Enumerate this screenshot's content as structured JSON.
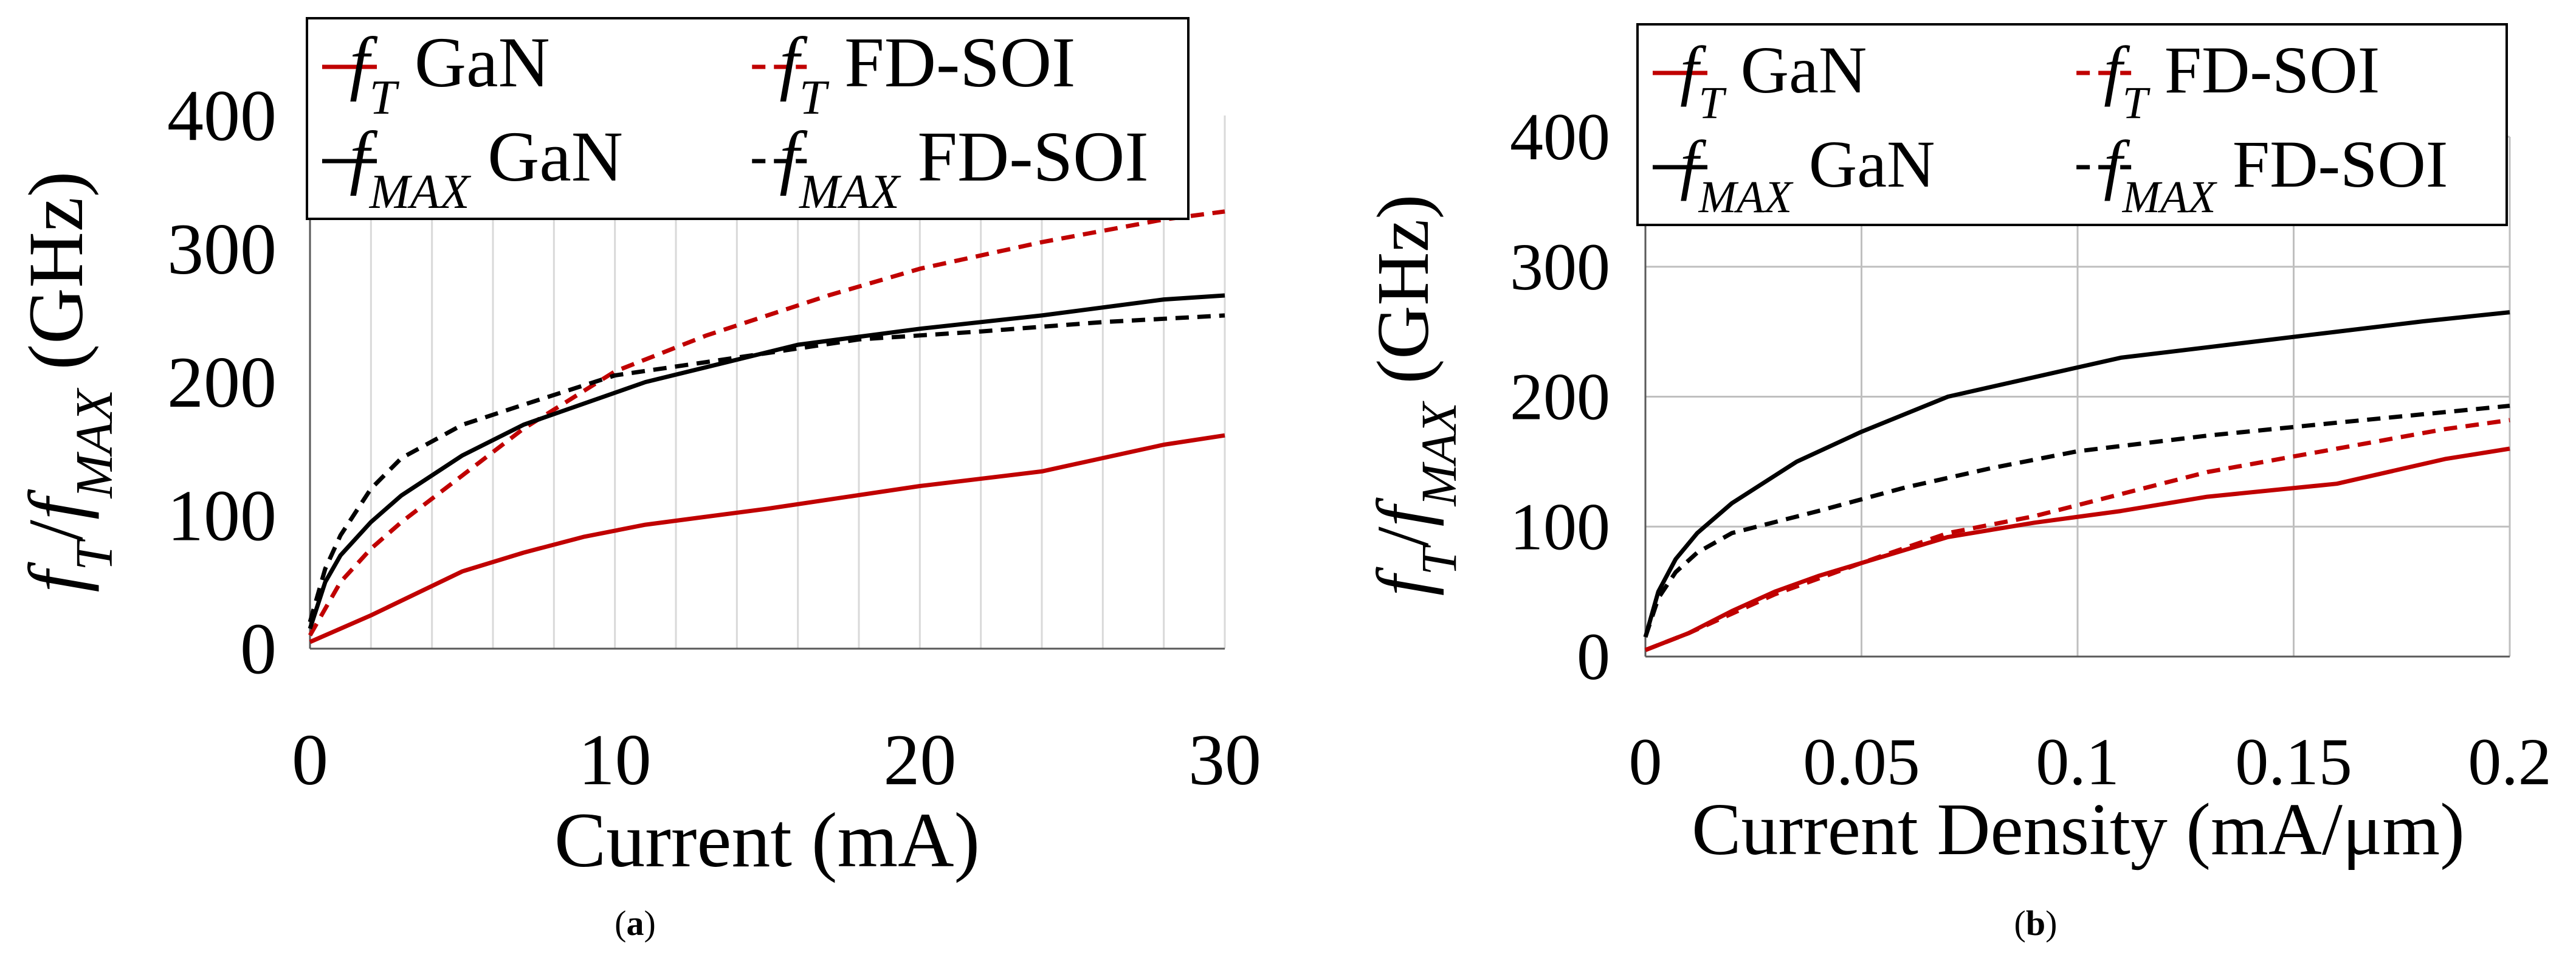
{
  "panel_labels": {
    "a": "a",
    "b": "b"
  },
  "legend_text": {
    "ft": "f",
    "ft_sub": "T",
    "fmax": "f",
    "fmax_sub": "MAX",
    "gan": "GaN",
    "fdsoi": "FD-SOI"
  },
  "colors": {
    "red": "#C00000",
    "black": "#000000",
    "grid": "#D9D9D9",
    "grid_b": "#BFBFBF"
  },
  "chart_data": [
    {
      "id": "a",
      "type": "line",
      "title": "",
      "xlabel": "Current (mA)",
      "ylabel": "fT/fMAX (GHz)",
      "xlim": [
        0,
        30
      ],
      "ylim": [
        0,
        400
      ],
      "xticks": [
        "0",
        "10",
        "20",
        "30"
      ],
      "yticks": [
        "0",
        "100",
        "200",
        "300",
        "400"
      ],
      "grid": "vertical",
      "legend_position": "top",
      "series": [
        {
          "name": "fT GaN",
          "color": "#C00000",
          "dash": "solid",
          "points": [
            [
              0,
              5
            ],
            [
              2,
              25
            ],
            [
              5,
              58
            ],
            [
              7,
              72
            ],
            [
              9,
              84
            ],
            [
              11,
              93
            ],
            [
              15,
              105
            ],
            [
              20,
              122
            ],
            [
              24,
              133
            ],
            [
              28,
              153
            ],
            [
              30,
              160
            ]
          ]
        },
        {
          "name": "fT FD-SOI",
          "color": "#C00000",
          "dash": "dashed",
          "points": [
            [
              0,
              10
            ],
            [
              0.5,
              30
            ],
            [
              1,
              50
            ],
            [
              2,
              75
            ],
            [
              3,
              95
            ],
            [
              5,
              130
            ],
            [
              7,
              165
            ],
            [
              10,
              208
            ],
            [
              13,
              235
            ],
            [
              17,
              265
            ],
            [
              20,
              285
            ],
            [
              24,
              305
            ],
            [
              28,
              322
            ],
            [
              30,
              328
            ]
          ]
        },
        {
          "name": "fMAX GaN",
          "color": "#000000",
          "dash": "solid",
          "points": [
            [
              0,
              15
            ],
            [
              0.5,
              50
            ],
            [
              1,
              70
            ],
            [
              2,
              95
            ],
            [
              3,
              115
            ],
            [
              5,
              145
            ],
            [
              7,
              168
            ],
            [
              11,
              200
            ],
            [
              16,
              228
            ],
            [
              20,
              240
            ],
            [
              24,
              250
            ],
            [
              28,
              262
            ],
            [
              30,
              265
            ]
          ]
        },
        {
          "name": "fMAX FD-SOI",
          "color": "#000000",
          "dash": "dashed",
          "points": [
            [
              0,
              20
            ],
            [
              0.5,
              60
            ],
            [
              1,
              85
            ],
            [
              2,
              120
            ],
            [
              3,
              143
            ],
            [
              5,
              168
            ],
            [
              7,
              183
            ],
            [
              10,
              205
            ],
            [
              13,
              215
            ],
            [
              18,
              232
            ],
            [
              22,
              238
            ],
            [
              26,
              245
            ],
            [
              30,
              250
            ]
          ]
        }
      ]
    },
    {
      "id": "b",
      "type": "line",
      "title": "",
      "xlabel": "Current Density (mA/μm)",
      "ylabel": "fT/fMAX (GHz)",
      "xlim": [
        0,
        0.2
      ],
      "ylim": [
        0,
        400
      ],
      "xticks": [
        "0",
        "0.05",
        "0.1",
        "0.15",
        "0.2"
      ],
      "yticks": [
        "0",
        "100",
        "200",
        "300",
        "400"
      ],
      "grid": "both",
      "legend_position": "top",
      "series": [
        {
          "name": "fT GaN",
          "color": "#C00000",
          "dash": "solid",
          "points": [
            [
              0,
              5
            ],
            [
              0.01,
              18
            ],
            [
              0.02,
              35
            ],
            [
              0.03,
              50
            ],
            [
              0.04,
              62
            ],
            [
              0.05,
              72
            ],
            [
              0.07,
              92
            ],
            [
              0.09,
              103
            ],
            [
              0.11,
              112
            ],
            [
              0.13,
              123
            ],
            [
              0.16,
              133
            ],
            [
              0.185,
              152
            ],
            [
              0.2,
              160
            ]
          ]
        },
        {
          "name": "fT FD-SOI",
          "color": "#C00000",
          "dash": "dashed",
          "points": [
            [
              0,
              5
            ],
            [
              0.01,
              18
            ],
            [
              0.02,
              33
            ],
            [
              0.03,
              48
            ],
            [
              0.04,
              60
            ],
            [
              0.05,
              72
            ],
            [
              0.07,
              95
            ],
            [
              0.09,
              108
            ],
            [
              0.11,
              125
            ],
            [
              0.13,
              142
            ],
            [
              0.16,
              160
            ],
            [
              0.185,
              175
            ],
            [
              0.2,
              182
            ]
          ]
        },
        {
          "name": "fMAX GaN",
          "color": "#000000",
          "dash": "solid",
          "points": [
            [
              0,
              15
            ],
            [
              0.003,
              50
            ],
            [
              0.007,
              75
            ],
            [
              0.012,
              95
            ],
            [
              0.02,
              118
            ],
            [
              0.035,
              150
            ],
            [
              0.05,
              173
            ],
            [
              0.07,
              200
            ],
            [
              0.09,
              215
            ],
            [
              0.11,
              230
            ],
            [
              0.13,
              238
            ],
            [
              0.16,
              250
            ],
            [
              0.18,
              258
            ],
            [
              0.2,
              265
            ]
          ]
        },
        {
          "name": "fMAX FD-SOI",
          "color": "#000000",
          "dash": "dashed",
          "points": [
            [
              0,
              15
            ],
            [
              0.003,
              45
            ],
            [
              0.007,
              65
            ],
            [
              0.012,
              80
            ],
            [
              0.02,
              95
            ],
            [
              0.04,
              112
            ],
            [
              0.06,
              130
            ],
            [
              0.08,
              145
            ],
            [
              0.1,
              158
            ],
            [
              0.13,
              170
            ],
            [
              0.16,
              180
            ],
            [
              0.2,
              193
            ]
          ]
        }
      ]
    }
  ]
}
